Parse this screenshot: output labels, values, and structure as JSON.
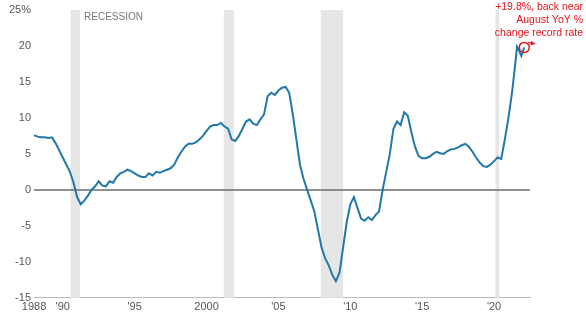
{
  "chart_data": {
    "type": "line",
    "x": [
      1988.0,
      1988.25,
      1988.5,
      1988.75,
      1989.0,
      1989.25,
      1989.5,
      1989.75,
      1990.0,
      1990.25,
      1990.5,
      1990.75,
      1991.0,
      1991.25,
      1991.5,
      1991.75,
      1992.0,
      1992.25,
      1992.5,
      1992.75,
      1993.0,
      1993.25,
      1993.5,
      1993.75,
      1994.0,
      1994.25,
      1994.5,
      1994.75,
      1995.0,
      1995.25,
      1995.5,
      1995.75,
      1996.0,
      1996.25,
      1996.5,
      1996.75,
      1997.0,
      1997.25,
      1997.5,
      1997.75,
      1998.0,
      1998.25,
      1998.5,
      1998.75,
      1999.0,
      1999.25,
      1999.5,
      1999.75,
      2000.0,
      2000.25,
      2000.5,
      2000.75,
      2001.0,
      2001.25,
      2001.5,
      2001.75,
      2002.0,
      2002.25,
      2002.5,
      2002.75,
      2003.0,
      2003.25,
      2003.5,
      2003.75,
      2004.0,
      2004.25,
      2004.5,
      2004.75,
      2005.0,
      2005.25,
      2005.5,
      2005.75,
      2006.0,
      2006.25,
      2006.5,
      2006.75,
      2007.0,
      2007.25,
      2007.5,
      2007.75,
      2008.0,
      2008.25,
      2008.5,
      2008.75,
      2009.0,
      2009.25,
      2009.5,
      2009.75,
      2010.0,
      2010.25,
      2010.5,
      2010.75,
      2011.0,
      2011.25,
      2011.5,
      2011.75,
      2012.0,
      2012.25,
      2012.5,
      2012.75,
      2013.0,
      2013.25,
      2013.5,
      2013.75,
      2014.0,
      2014.25,
      2014.5,
      2014.75,
      2015.0,
      2015.25,
      2015.5,
      2015.75,
      2016.0,
      2016.25,
      2016.5,
      2016.75,
      2017.0,
      2017.25,
      2017.5,
      2017.75,
      2018.0,
      2018.25,
      2018.5,
      2018.75,
      2019.0,
      2019.25,
      2019.5,
      2019.75,
      2020.0,
      2020.25,
      2020.5,
      2020.75,
      2021.0,
      2021.25,
      2021.5,
      2021.6,
      2021.75,
      2021.9,
      2022.0,
      2022.1
    ],
    "values": [
      7.6,
      7.4,
      7.3,
      7.3,
      7.2,
      7.3,
      6.5,
      5.5,
      4.5,
      3.5,
      2.5,
      1.0,
      -1.0,
      -2.0,
      -1.5,
      -0.8,
      0.0,
      0.5,
      1.2,
      0.6,
      0.5,
      1.2,
      1.0,
      1.8,
      2.3,
      2.5,
      2.8,
      2.6,
      2.3,
      2.0,
      1.8,
      1.8,
      2.3,
      2.0,
      2.5,
      2.4,
      2.6,
      2.8,
      3.0,
      3.5,
      4.5,
      5.3,
      6.0,
      6.4,
      6.4,
      6.6,
      7.0,
      7.5,
      8.2,
      8.8,
      9.0,
      9.0,
      9.3,
      8.8,
      8.5,
      7.0,
      6.8,
      7.5,
      8.5,
      9.5,
      9.8,
      9.2,
      9.0,
      9.8,
      10.5,
      13.0,
      13.5,
      13.2,
      13.8,
      14.2,
      14.3,
      13.5,
      10.5,
      7.0,
      3.5,
      1.5,
      0.0,
      -1.5,
      -3.0,
      -5.5,
      -8.0,
      -9.5,
      -10.5,
      -11.8,
      -12.7,
      -11.5,
      -8.0,
      -4.5,
      -2.0,
      -1.0,
      -2.5,
      -4.0,
      -4.3,
      -3.8,
      -4.2,
      -3.5,
      -3.0,
      0.0,
      2.5,
      5.0,
      8.5,
      9.5,
      9.0,
      10.8,
      10.3,
      8.0,
      6.0,
      4.7,
      4.4,
      4.4,
      4.6,
      5.0,
      5.3,
      5.1,
      5.0,
      5.4,
      5.6,
      5.7,
      5.9,
      6.2,
      6.4,
      6.0,
      5.3,
      4.5,
      3.8,
      3.3,
      3.2,
      3.5,
      4.0,
      4.5,
      4.3,
      7.0,
      10.0,
      13.5,
      18.0,
      19.9,
      19.3,
      18.6,
      19.2,
      19.8
    ],
    "color": "#2278a8",
    "xlim": [
      1988,
      2022.5
    ],
    "xticks": [
      1988,
      {
        "value": 1990,
        "label": "'90"
      },
      {
        "value": 1995,
        "label": "'95"
      },
      2000,
      {
        "value": 2005,
        "label": "'05"
      },
      {
        "value": 2010,
        "label": "'10"
      },
      {
        "value": 2015,
        "label": "'15"
      },
      {
        "value": 2020,
        "label": "'20"
      }
    ],
    "ylim": [
      -15,
      25
    ],
    "yticks": [
      {
        "value": 25,
        "label": "25%"
      },
      20,
      15,
      10,
      5,
      0,
      -5,
      -10,
      -15
    ],
    "grid": false,
    "recessions": {
      "label": "RECESSION",
      "periods": [
        [
          1990.55,
          1991.2
        ],
        [
          2001.2,
          2001.9
        ],
        [
          2007.95,
          2009.5
        ],
        [
          2020.1,
          2020.35
        ]
      ]
    },
    "annotation": {
      "text": [
        "+19.8%, back near",
        "August YoY %",
        "change record rate"
      ],
      "x": 2022.1,
      "y": 19.8,
      "color": "#e8141b"
    }
  }
}
